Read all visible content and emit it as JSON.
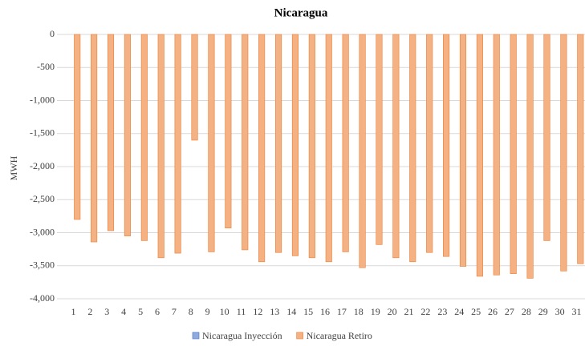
{
  "chart_data": {
    "type": "bar",
    "title": "Nicaragua",
    "y_label": "MWH",
    "categories": [
      "1",
      "2",
      "3",
      "4",
      "5",
      "6",
      "7",
      "8",
      "9",
      "10",
      "11",
      "12",
      "13",
      "14",
      "15",
      "16",
      "17",
      "18",
      "19",
      "20",
      "21",
      "22",
      "23",
      "24",
      "25",
      "26",
      "27",
      "28",
      "29",
      "30",
      "31"
    ],
    "series": [
      {
        "name": "Nicaragua Inyección",
        "color": "#8faadc",
        "values": [
          0,
          0,
          0,
          0,
          0,
          0,
          0,
          0,
          0,
          0,
          0,
          0,
          0,
          0,
          0,
          0,
          0,
          0,
          0,
          0,
          0,
          0,
          0,
          0,
          0,
          0,
          0,
          0,
          0,
          0,
          0
        ]
      },
      {
        "name": "Nicaragua Retiro",
        "color": "#f4b183",
        "values": [
          -2800,
          -3140,
          -2970,
          -3050,
          -3120,
          -3380,
          -3310,
          -1600,
          -3290,
          -2930,
          -3260,
          -3440,
          -3300,
          -3350,
          -3380,
          -3440,
          -3290,
          -3530,
          -3180,
          -3380,
          -3440,
          -3300,
          -3360,
          -3510,
          -3660,
          -3640,
          -3620,
          -3690,
          -3120,
          -3580,
          -3470
        ]
      }
    ],
    "ylim": [
      0,
      -4000
    ],
    "yticks": [
      0,
      -500,
      {
        "value": -1000,
        "label": "-1,000"
      },
      {
        "value": -1500,
        "label": "-1,500"
      },
      {
        "value": -2000,
        "label": "-2,000"
      },
      {
        "value": -2500,
        "label": "-2,500"
      },
      {
        "value": -3000,
        "label": "-3,000"
      },
      {
        "value": -3500,
        "label": "-3,500"
      },
      {
        "value": -4000,
        "label": "-4,000"
      }
    ],
    "grid": true,
    "legend": "bottom"
  }
}
